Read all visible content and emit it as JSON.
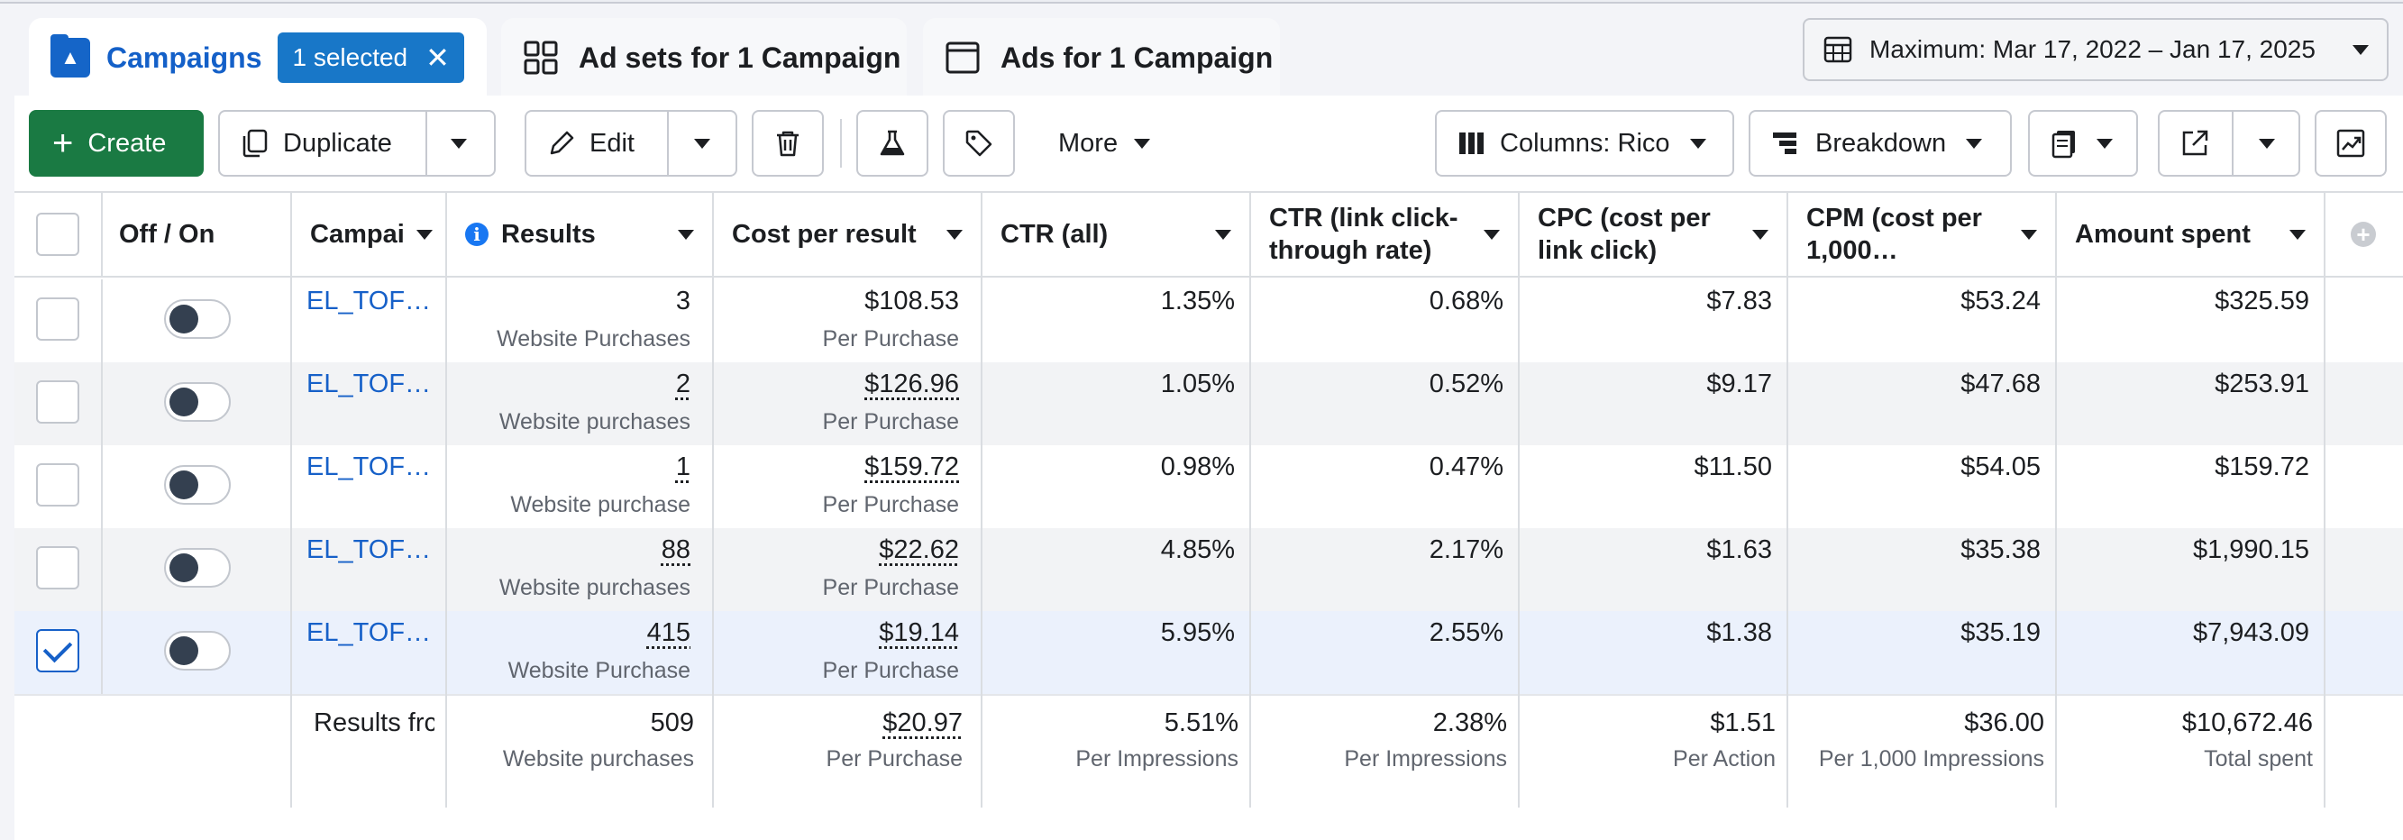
{
  "tabs": {
    "campaigns": "Campaigns",
    "selected_pill": "1 selected",
    "ad_sets": "Ad sets for 1 Campaign",
    "ads": "Ads for 1 Campaign"
  },
  "date_range": "Maximum: Mar 17, 2022 – Jan 17, 2025",
  "toolbar": {
    "create": "Create",
    "duplicate": "Duplicate",
    "edit": "Edit",
    "more": "More",
    "columns": "Columns: Rico",
    "breakdown": "Breakdown"
  },
  "headers": {
    "onoff": "Off / On",
    "campaign": "Campai",
    "results": "Results",
    "cost_per_result": "Cost per result",
    "ctr_all": "CTR (all)",
    "ctr_link": "CTR (link click-through rate)",
    "cpc": "CPC (cost per link click)",
    "cpm": "CPM (cost per 1,000…",
    "amount": "Amount spent"
  },
  "rows": [
    {
      "name": "EL_TOF…",
      "results": "3",
      "results_sub": "Website Purchases",
      "cpr": "$108.53",
      "cpr_sub": "Per Purchase",
      "ctr_all": "1.35%",
      "ctr_link": "0.68%",
      "cpc": "$7.83",
      "cpm": "$53.24",
      "amount": "$325.59"
    },
    {
      "name": "EL_TOF…",
      "results": "2",
      "results_sub": "Website purchases",
      "cpr": "$126.96",
      "cpr_sub": "Per Purchase",
      "ctr_all": "1.05%",
      "ctr_link": "0.52%",
      "cpc": "$9.17",
      "cpm": "$47.68",
      "amount": "$253.91"
    },
    {
      "name": "EL_TOF…",
      "results": "1",
      "results_sub": "Website purchase",
      "cpr": "$159.72",
      "cpr_sub": "Per Purchase",
      "ctr_all": "0.98%",
      "ctr_link": "0.47%",
      "cpc": "$11.50",
      "cpm": "$54.05",
      "amount": "$159.72"
    },
    {
      "name": "EL_TOF…",
      "results": "88",
      "results_sub": "Website purchases",
      "cpr": "$22.62",
      "cpr_sub": "Per Purchase",
      "ctr_all": "4.85%",
      "ctr_link": "2.17%",
      "cpc": "$1.63",
      "cpm": "$35.38",
      "amount": "$1,990.15"
    },
    {
      "name": "EL_TOF…",
      "results": "415",
      "results_sub": "Website Purchase",
      "cpr": "$19.14",
      "cpr_sub": "Per Purchase",
      "ctr_all": "5.95%",
      "ctr_link": "2.55%",
      "cpc": "$1.38",
      "cpm": "$35.19",
      "amount": "$7,943.09"
    }
  ],
  "totals": {
    "label": "Results frc",
    "results": "509",
    "results_sub": "Website purchases",
    "cpr": "$20.97",
    "cpr_sub": "Per Purchase",
    "ctr_all": "5.51%",
    "ctr_all_sub": "Per Impressions",
    "ctr_link": "2.38%",
    "ctr_link_sub": "Per Impressions",
    "cpc": "$1.51",
    "cpc_sub": "Per Action",
    "cpm": "$36.00",
    "cpm_sub": "Per 1,000 Impressions",
    "amount": "$10,672.46",
    "amount_sub": "Total spent"
  }
}
